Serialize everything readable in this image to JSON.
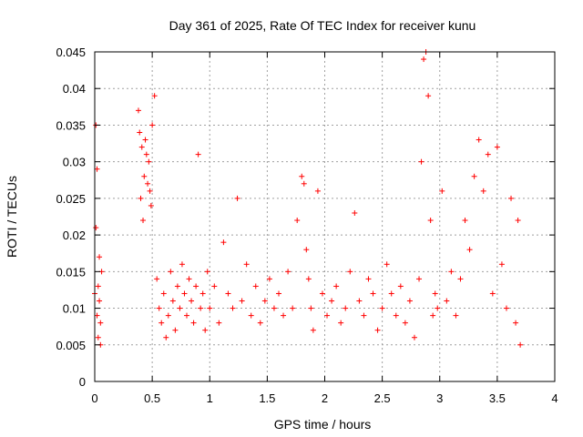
{
  "chart_data": {
    "type": "scatter",
    "title": "Day 361 of 2025, Rate Of TEC Index for receiver kunu",
    "xlabel": "GPS time / hours",
    "ylabel": "ROTI / TECUs",
    "xlim": [
      0,
      4
    ],
    "ylim": [
      0,
      0.045
    ],
    "xticks": [
      0,
      0.5,
      1,
      1.5,
      2,
      2.5,
      3,
      3.5,
      4
    ],
    "xtick_labels": [
      "0",
      "0.5",
      "1",
      "1.5",
      "2",
      "2.5",
      "3",
      "3.5",
      "4"
    ],
    "yticks": [
      0,
      0.005,
      0.01,
      0.015,
      0.02,
      0.025,
      0.03,
      0.035,
      0.04,
      0.045
    ],
    "ytick_labels": [
      "0",
      "0.005",
      "0.01",
      "0.015",
      "0.02",
      "0.025",
      "0.03",
      "0.035",
      "0.04",
      "0.045"
    ],
    "grid": true,
    "marker": "+",
    "color": "#ff0000",
    "series": [
      {
        "name": "ROTI",
        "x": [
          0.0,
          0.01,
          0.01,
          0.02,
          0.02,
          0.03,
          0.03,
          0.04,
          0.04,
          0.05,
          0.05,
          0.06,
          0.38,
          0.39,
          0.4,
          0.41,
          0.42,
          0.43,
          0.44,
          0.45,
          0.46,
          0.47,
          0.48,
          0.49,
          0.5,
          0.52,
          0.54,
          0.56,
          0.58,
          0.6,
          0.62,
          0.64,
          0.66,
          0.68,
          0.7,
          0.72,
          0.74,
          0.76,
          0.78,
          0.8,
          0.82,
          0.84,
          0.86,
          0.88,
          0.9,
          0.92,
          0.94,
          0.96,
          0.98,
          1.0,
          1.04,
          1.08,
          1.12,
          1.16,
          1.2,
          1.24,
          1.28,
          1.32,
          1.36,
          1.4,
          1.44,
          1.48,
          1.52,
          1.56,
          1.6,
          1.64,
          1.68,
          1.72,
          1.76,
          1.8,
          1.82,
          1.84,
          1.86,
          1.88,
          1.9,
          1.94,
          1.98,
          2.02,
          2.06,
          2.1,
          2.14,
          2.18,
          2.22,
          2.26,
          2.3,
          2.34,
          2.38,
          2.42,
          2.46,
          2.5,
          2.54,
          2.58,
          2.62,
          2.66,
          2.7,
          2.74,
          2.78,
          2.82,
          2.84,
          2.86,
          2.88,
          2.9,
          2.92,
          2.94,
          2.96,
          2.98,
          3.02,
          3.06,
          3.1,
          3.14,
          3.18,
          3.22,
          3.26,
          3.3,
          3.34,
          3.38,
          3.42,
          3.46,
          3.5,
          3.54,
          3.58,
          3.62,
          3.66,
          3.68,
          3.7
        ],
        "y": [
          0.012,
          0.035,
          0.021,
          0.029,
          0.009,
          0.013,
          0.006,
          0.011,
          0.017,
          0.005,
          0.008,
          0.015,
          0.037,
          0.034,
          0.025,
          0.032,
          0.022,
          0.028,
          0.033,
          0.031,
          0.027,
          0.03,
          0.026,
          0.024,
          0.035,
          0.039,
          0.014,
          0.01,
          0.008,
          0.012,
          0.006,
          0.009,
          0.015,
          0.011,
          0.007,
          0.013,
          0.01,
          0.016,
          0.012,
          0.009,
          0.014,
          0.011,
          0.008,
          0.013,
          0.031,
          0.01,
          0.012,
          0.007,
          0.015,
          0.01,
          0.013,
          0.008,
          0.019,
          0.012,
          0.01,
          0.025,
          0.011,
          0.016,
          0.009,
          0.013,
          0.008,
          0.011,
          0.014,
          0.01,
          0.012,
          0.009,
          0.015,
          0.01,
          0.022,
          0.028,
          0.027,
          0.018,
          0.014,
          0.01,
          0.007,
          0.026,
          0.012,
          0.009,
          0.011,
          0.013,
          0.008,
          0.01,
          0.015,
          0.023,
          0.011,
          0.009,
          0.014,
          0.012,
          0.007,
          0.01,
          0.016,
          0.012,
          0.009,
          0.013,
          0.008,
          0.011,
          0.006,
          0.014,
          0.03,
          0.044,
          0.045,
          0.039,
          0.022,
          0.009,
          0.012,
          0.01,
          0.026,
          0.011,
          0.015,
          0.009,
          0.014,
          0.022,
          0.018,
          0.028,
          0.033,
          0.026,
          0.031,
          0.012,
          0.032,
          0.016,
          0.01,
          0.025,
          0.008,
          0.022,
          0.005
        ]
      }
    ]
  }
}
